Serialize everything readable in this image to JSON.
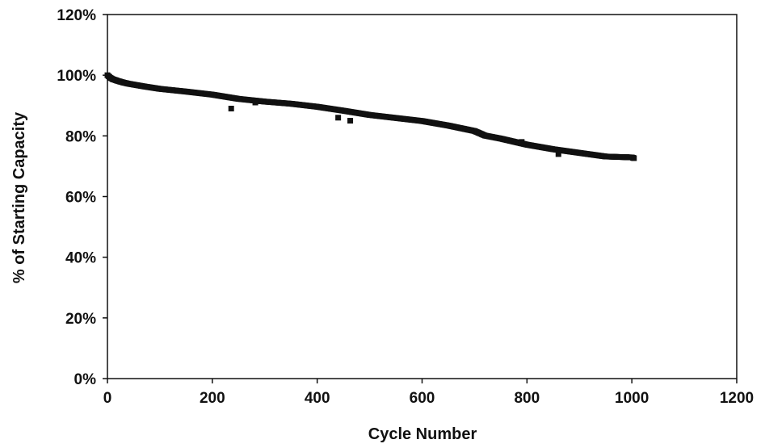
{
  "chart_data": {
    "type": "scatter",
    "title": "",
    "xlabel": "Cycle Number",
    "ylabel": "% of Starting Capacity",
    "xlim": [
      0,
      1200
    ],
    "ylim": [
      0,
      120
    ],
    "x_ticks": [
      0,
      200,
      400,
      600,
      800,
      1000,
      1200
    ],
    "y_ticks": [
      0,
      20,
      40,
      60,
      80,
      100,
      120
    ],
    "x_tick_labels": [
      "0",
      "200",
      "400",
      "600",
      "800",
      "1000",
      "1200"
    ],
    "y_tick_labels": [
      "0%",
      "20%",
      "40%",
      "60%",
      "80%",
      "100%",
      "120%"
    ],
    "grid": false,
    "legend": "none",
    "marker_color": "#111111",
    "main_trend": [
      [
        0,
        100
      ],
      [
        5,
        99.2
      ],
      [
        10,
        98.7
      ],
      [
        20,
        98.1
      ],
      [
        30,
        97.6
      ],
      [
        40,
        97.2
      ],
      [
        50,
        96.9
      ],
      [
        70,
        96.3
      ],
      [
        100,
        95.5
      ],
      [
        150,
        94.6
      ],
      [
        200,
        93.6
      ],
      [
        250,
        92.2
      ],
      [
        300,
        91.3
      ],
      [
        350,
        90.6
      ],
      [
        400,
        89.6
      ],
      [
        450,
        88.3
      ],
      [
        500,
        86.9
      ],
      [
        550,
        85.9
      ],
      [
        600,
        84.9
      ],
      [
        650,
        83.4
      ],
      [
        700,
        81.6
      ],
      [
        720,
        80.1
      ],
      [
        750,
        79.1
      ],
      [
        800,
        77.1
      ],
      [
        850,
        75.6
      ],
      [
        900,
        74.4
      ],
      [
        950,
        73.2
      ],
      [
        1000,
        72.9
      ],
      [
        1005,
        72.6
      ]
    ],
    "outliers": [
      [
        236,
        89
      ],
      [
        282,
        91
      ],
      [
        440,
        86
      ],
      [
        463,
        85
      ],
      [
        790,
        78
      ],
      [
        860,
        74
      ],
      [
        990,
        73
      ]
    ]
  }
}
